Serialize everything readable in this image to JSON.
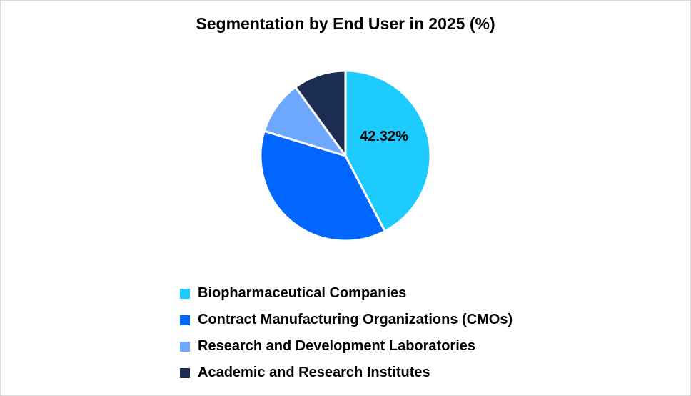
{
  "chart_data": {
    "type": "pie",
    "title": "Segmentation by End User in 2025 (%)",
    "categories": [
      "Biopharmaceutical Companies",
      "Contract Manufacturing Organizations (CMOs)",
      "Research and Development Laboratories",
      "Academic and Research Institutes"
    ],
    "values": [
      42.32,
      37.4,
      10.25,
      10.03
    ],
    "colors": [
      "#1ECBFE",
      "#0066FF",
      "#6EA8FE",
      "#1B2D52"
    ],
    "data_labels": [
      "42.32%",
      "",
      "",
      ""
    ],
    "legend_position": "bottom"
  }
}
